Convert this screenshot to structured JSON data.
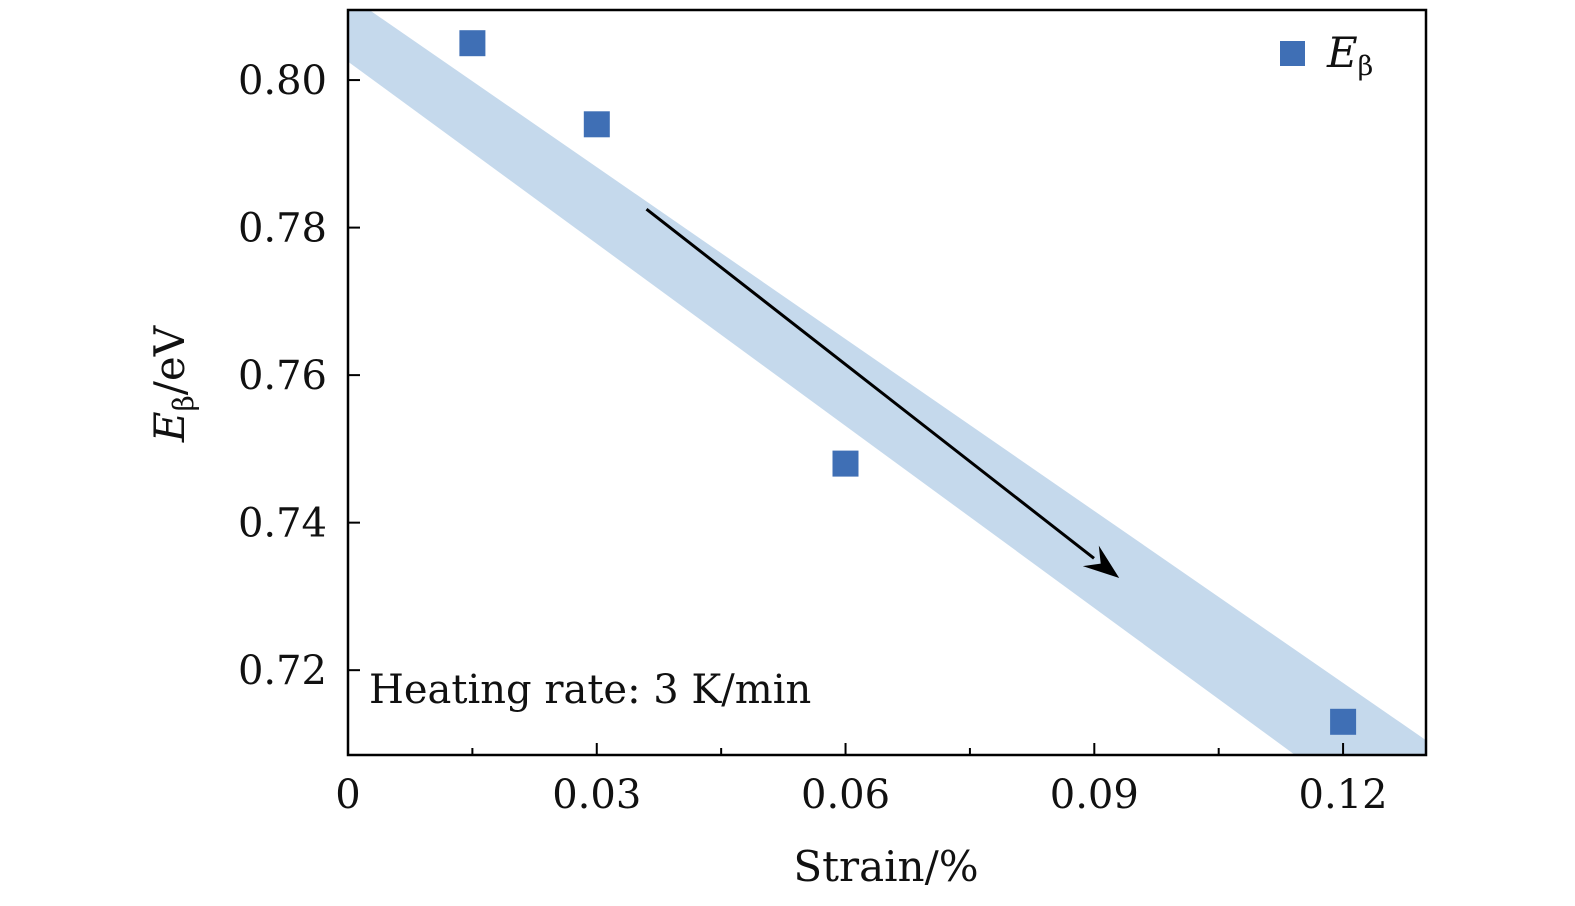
{
  "chart_data": {
    "type": "scatter",
    "xlabel": "Strain/%",
    "ylabel": {
      "main": "E",
      "sub": "β",
      "unit": "/eV"
    },
    "xlim": [
      0,
      0.13
    ],
    "ylim": [
      0.7085,
      0.8095
    ],
    "x_ticks": [
      0,
      0.03,
      0.06,
      0.09,
      0.12
    ],
    "x_tick_labels": [
      "0",
      "0.03",
      "0.06",
      "0.09",
      "0.12"
    ],
    "x_minor_ticks": [
      0.015,
      0.045,
      0.075,
      0.105
    ],
    "y_ticks": [
      0.72,
      0.74,
      0.76,
      0.78,
      0.8
    ],
    "y_tick_labels": [
      "0.72",
      "0.74",
      "0.76",
      "0.78",
      "0.80"
    ],
    "grid": false,
    "legend": {
      "position": "top-right",
      "main": "E",
      "sub": "β"
    },
    "series": [
      {
        "name": "Eβ",
        "marker": "square",
        "color": "#3f6fb5",
        "x": [
          0.015,
          0.03,
          0.06,
          0.12
        ],
        "y": [
          0.805,
          0.794,
          0.748,
          0.713
        ]
      }
    ],
    "band": {
      "color": "#c5d9ec",
      "upper": [
        [
          0,
          0.8115
        ],
        [
          0.13,
          0.7105
        ]
      ],
      "lower": [
        [
          0,
          0.8025
        ],
        [
          0.13,
          0.6955
        ]
      ]
    },
    "trend_arrow": {
      "from": [
        0.036,
        0.7825
      ],
      "to": [
        0.093,
        0.7325
      ],
      "color": "#000000"
    },
    "annotation": "Heating rate: 3 K/min"
  }
}
